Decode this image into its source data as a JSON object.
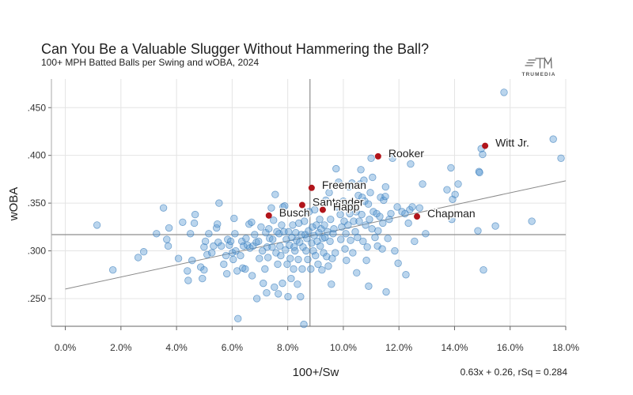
{
  "brand": {
    "logo_text": "TRUMEDIA",
    "logo_icon": "trumedia-logo-icon"
  },
  "colors": {
    "point": "#5a9bd3",
    "point_stroke": "#2e74b5",
    "highlight": "#b1151b",
    "grid": "#e4e4e4",
    "axis": "#666666",
    "y_axis": "#aaaaaa",
    "ref_line": "#8e8e8e",
    "regression": "#8a8a8a"
  },
  "chart_data": {
    "type": "scatter",
    "title": "Can You Be a Valuable Slugger Without Hammering the Ball?",
    "subtitle": "100+ MPH Batted Balls per Swing and wOBA, 2024",
    "xlabel": "100+/Sw",
    "ylabel": "wOBA",
    "xlim": [
      -0.005,
      0.18
    ],
    "ylim": [
      0.221,
      0.48
    ],
    "grid": true,
    "x_ticks": {
      "values": [
        0,
        0.02,
        0.04,
        0.06,
        0.08,
        0.1,
        0.12,
        0.14,
        0.16,
        0.18
      ],
      "labels": [
        "0.0%",
        "2.0%",
        "4.0%",
        "6.0%",
        "8.0%",
        "10.0%",
        "12.0%",
        "14.0%",
        "16.0%",
        "18.0%"
      ]
    },
    "y_ticks": {
      "values": [
        0.25,
        0.3,
        0.35,
        0.4,
        0.45
      ],
      "labels": [
        ".250",
        ".300",
        ".350",
        ".400",
        ".450"
      ]
    },
    "reference_lines": {
      "x_mean": 0.088,
      "y_mean": 0.317
    },
    "regression": {
      "slope": 0.63,
      "intercept": 0.26,
      "rsq": 0.284,
      "x_range": [
        0,
        0.18
      ],
      "label": "0.63x + 0.26, rSq = 0.284"
    },
    "points": [
      [
        0.0114,
        0.327
      ],
      [
        0.0171,
        0.28
      ],
      [
        0.0262,
        0.293
      ],
      [
        0.0282,
        0.299
      ],
      [
        0.0328,
        0.318
      ],
      [
        0.0353,
        0.345
      ],
      [
        0.037,
        0.305
      ],
      [
        0.0373,
        0.324
      ],
      [
        0.0365,
        0.312
      ],
      [
        0.0407,
        0.292
      ],
      [
        0.0422,
        0.33
      ],
      [
        0.0439,
        0.279
      ],
      [
        0.0442,
        0.269
      ],
      [
        0.045,
        0.318
      ],
      [
        0.0456,
        0.29
      ],
      [
        0.0467,
        0.338
      ],
      [
        0.0464,
        0.329
      ],
      [
        0.0487,
        0.283
      ],
      [
        0.0493,
        0.271
      ],
      [
        0.0499,
        0.304
      ],
      [
        0.0499,
        0.28
      ],
      [
        0.0504,
        0.31
      ],
      [
        0.051,
        0.296
      ],
      [
        0.0516,
        0.318
      ],
      [
        0.0527,
        0.298
      ],
      [
        0.0533,
        0.305
      ],
      [
        0.0544,
        0.324
      ],
      [
        0.0547,
        0.328
      ],
      [
        0.055,
        0.309
      ],
      [
        0.0553,
        0.35
      ],
      [
        0.0561,
        0.305
      ],
      [
        0.057,
        0.286
      ],
      [
        0.0578,
        0.295
      ],
      [
        0.0581,
        0.276
      ],
      [
        0.0584,
        0.312
      ],
      [
        0.059,
        0.306
      ],
      [
        0.0595,
        0.31
      ],
      [
        0.0601,
        0.298
      ],
      [
        0.0604,
        0.291
      ],
      [
        0.0607,
        0.334
      ],
      [
        0.061,
        0.318
      ],
      [
        0.0613,
        0.3
      ],
      [
        0.0618,
        0.279
      ],
      [
        0.0621,
        0.229
      ],
      [
        0.063,
        0.295
      ],
      [
        0.0635,
        0.31
      ],
      [
        0.0638,
        0.282
      ],
      [
        0.0641,
        0.305
      ],
      [
        0.0647,
        0.281
      ],
      [
        0.065,
        0.313
      ],
      [
        0.0655,
        0.306
      ],
      [
        0.0661,
        0.328
      ],
      [
        0.0664,
        0.303
      ],
      [
        0.067,
        0.33
      ],
      [
        0.0672,
        0.274
      ],
      [
        0.0675,
        0.305
      ],
      [
        0.0681,
        0.317
      ],
      [
        0.0687,
        0.309
      ],
      [
        0.0689,
        0.25
      ],
      [
        0.0695,
        0.31
      ],
      [
        0.0698,
        0.292
      ],
      [
        0.0704,
        0.325
      ],
      [
        0.0709,
        0.3
      ],
      [
        0.0712,
        0.266
      ],
      [
        0.0718,
        0.281
      ],
      [
        0.0721,
        0.319
      ],
      [
        0.0724,
        0.256
      ],
      [
        0.0726,
        0.304
      ],
      [
        0.0729,
        0.293
      ],
      [
        0.0732,
        0.323
      ],
      [
        0.0735,
        0.313
      ],
      [
        0.0741,
        0.345
      ],
      [
        0.0744,
        0.304
      ],
      [
        0.0746,
        0.312
      ],
      [
        0.0749,
        0.332
      ],
      [
        0.0752,
        0.262
      ],
      [
        0.0755,
        0.359
      ],
      [
        0.0758,
        0.298
      ],
      [
        0.0761,
        0.32
      ],
      [
        0.0764,
        0.286
      ],
      [
        0.0766,
        0.255
      ],
      [
        0.0769,
        0.318
      ],
      [
        0.0772,
        0.305
      ],
      [
        0.0775,
        0.295
      ],
      [
        0.0778,
        0.327
      ],
      [
        0.0781,
        0.266
      ],
      [
        0.0783,
        0.346
      ],
      [
        0.0786,
        0.32
      ],
      [
        0.0789,
        0.347
      ],
      [
        0.0792,
        0.301
      ],
      [
        0.0795,
        0.312
      ],
      [
        0.0798,
        0.286
      ],
      [
        0.0801,
        0.252
      ],
      [
        0.0803,
        0.32
      ],
      [
        0.0806,
        0.306
      ],
      [
        0.0809,
        0.292
      ],
      [
        0.0812,
        0.271
      ],
      [
        0.0815,
        0.314
      ],
      [
        0.0818,
        0.327
      ],
      [
        0.0821,
        0.281
      ],
      [
        0.0823,
        0.304
      ],
      [
        0.0826,
        0.3
      ],
      [
        0.0829,
        0.319
      ],
      [
        0.0832,
        0.311
      ],
      [
        0.0835,
        0.265
      ],
      [
        0.0838,
        0.291
      ],
      [
        0.084,
        0.329
      ],
      [
        0.0843,
        0.309
      ],
      [
        0.0846,
        0.252
      ],
      [
        0.0849,
        0.317
      ],
      [
        0.0852,
        0.281
      ],
      [
        0.0855,
        0.304
      ],
      [
        0.0858,
        0.223
      ],
      [
        0.086,
        0.331
      ],
      [
        0.0863,
        0.317
      ],
      [
        0.0866,
        0.3
      ],
      [
        0.0869,
        0.313
      ],
      [
        0.0872,
        0.291
      ],
      [
        0.0875,
        0.321
      ],
      [
        0.0877,
        0.341
      ],
      [
        0.0883,
        0.281
      ],
      [
        0.0886,
        0.308
      ],
      [
        0.0889,
        0.325
      ],
      [
        0.0892,
        0.3
      ],
      [
        0.0895,
        0.316
      ],
      [
        0.0897,
        0.343
      ],
      [
        0.09,
        0.295
      ],
      [
        0.0903,
        0.327
      ],
      [
        0.0906,
        0.31
      ],
      [
        0.0909,
        0.286
      ],
      [
        0.0912,
        0.319
      ],
      [
        0.0915,
        0.333
      ],
      [
        0.0917,
        0.305
      ],
      [
        0.092,
        0.323
      ],
      [
        0.0923,
        0.28
      ],
      [
        0.0926,
        0.313
      ],
      [
        0.0929,
        0.298
      ],
      [
        0.0932,
        0.327
      ],
      [
        0.0934,
        0.314
      ],
      [
        0.0937,
        0.353
      ],
      [
        0.094,
        0.294
      ],
      [
        0.0943,
        0.32
      ],
      [
        0.0946,
        0.284
      ],
      [
        0.0949,
        0.361
      ],
      [
        0.0952,
        0.31
      ],
      [
        0.0954,
        0.333
      ],
      [
        0.0957,
        0.265
      ],
      [
        0.096,
        0.292
      ],
      [
        0.0963,
        0.318
      ],
      [
        0.0966,
        0.323
      ],
      [
        0.0969,
        0.35
      ],
      [
        0.0971,
        0.298
      ],
      [
        0.0974,
        0.386
      ],
      [
        0.0977,
        0.346
      ],
      [
        0.0983,
        0.372
      ],
      [
        0.0989,
        0.338
      ],
      [
        0.0991,
        0.312
      ],
      [
        0.0994,
        0.325
      ],
      [
        0.1,
        0.352
      ],
      [
        0.1003,
        0.331
      ],
      [
        0.1006,
        0.302
      ],
      [
        0.1009,
        0.318
      ],
      [
        0.1011,
        0.29
      ],
      [
        0.1017,
        0.327
      ],
      [
        0.102,
        0.367
      ],
      [
        0.1023,
        0.339
      ],
      [
        0.1026,
        0.311
      ],
      [
        0.1028,
        0.346
      ],
      [
        0.1031,
        0.371
      ],
      [
        0.1034,
        0.298
      ],
      [
        0.1037,
        0.331
      ],
      [
        0.104,
        0.349
      ],
      [
        0.1043,
        0.32
      ],
      [
        0.1046,
        0.341
      ],
      [
        0.1048,
        0.277
      ],
      [
        0.1051,
        0.314
      ],
      [
        0.1054,
        0.358
      ],
      [
        0.1057,
        0.331
      ],
      [
        0.106,
        0.37
      ],
      [
        0.1063,
        0.385
      ],
      [
        0.1066,
        0.338
      ],
      [
        0.1068,
        0.356
      ],
      [
        0.1071,
        0.31
      ],
      [
        0.1074,
        0.374
      ],
      [
        0.1077,
        0.352
      ],
      [
        0.108,
        0.327
      ],
      [
        0.1083,
        0.29
      ],
      [
        0.1086,
        0.304
      ],
      [
        0.109,
        0.349
      ],
      [
        0.1091,
        0.263
      ],
      [
        0.1094,
        0.333
      ],
      [
        0.1097,
        0.361
      ],
      [
        0.11,
        0.397
      ],
      [
        0.1103,
        0.323
      ],
      [
        0.1105,
        0.377
      ],
      [
        0.1108,
        0.341
      ],
      [
        0.1114,
        0.314
      ],
      [
        0.112,
        0.339
      ],
      [
        0.1123,
        0.305
      ],
      [
        0.1125,
        0.321
      ],
      [
        0.1131,
        0.336
      ],
      [
        0.1134,
        0.356
      ],
      [
        0.114,
        0.302
      ],
      [
        0.1142,
        0.329
      ],
      [
        0.1145,
        0.353
      ],
      [
        0.1151,
        0.357
      ],
      [
        0.1152,
        0.367
      ],
      [
        0.1154,
        0.257
      ],
      [
        0.116,
        0.313
      ],
      [
        0.1165,
        0.333
      ],
      [
        0.1171,
        0.339
      ],
      [
        0.1177,
        0.397
      ],
      [
        0.1185,
        0.3
      ],
      [
        0.1194,
        0.346
      ],
      [
        0.1197,
        0.287
      ],
      [
        0.1211,
        0.341
      ],
      [
        0.1222,
        0.339
      ],
      [
        0.1225,
        0.275
      ],
      [
        0.1234,
        0.329
      ],
      [
        0.1239,
        0.343
      ],
      [
        0.1242,
        0.391
      ],
      [
        0.1248,
        0.346
      ],
      [
        0.1256,
        0.31
      ],
      [
        0.1274,
        0.345
      ],
      [
        0.1285,
        0.37
      ],
      [
        0.1296,
        0.318
      ],
      [
        0.1373,
        0.364
      ],
      [
        0.1387,
        0.387
      ],
      [
        0.139,
        0.333
      ],
      [
        0.1393,
        0.354
      ],
      [
        0.1402,
        0.359
      ],
      [
        0.1413,
        0.37
      ],
      [
        0.1484,
        0.321
      ],
      [
        0.1488,
        0.383
      ],
      [
        0.149,
        0.382
      ],
      [
        0.1496,
        0.407
      ],
      [
        0.1501,
        0.401
      ],
      [
        0.1504,
        0.28
      ],
      [
        0.1547,
        0.326
      ],
      [
        0.1578,
        0.466
      ],
      [
        0.1678,
        0.331
      ],
      [
        0.1755,
        0.417
      ],
      [
        0.1783,
        0.397
      ]
    ],
    "highlighted": [
      {
        "name": "Witt Jr.",
        "x": 0.151,
        "y": 0.41
      },
      {
        "name": "Rooker",
        "x": 0.1125,
        "y": 0.399
      },
      {
        "name": "Freeman",
        "x": 0.0886,
        "y": 0.366
      },
      {
        "name": "Santander",
        "x": 0.0852,
        "y": 0.348
      },
      {
        "name": "Happ",
        "x": 0.0926,
        "y": 0.343
      },
      {
        "name": "Busch",
        "x": 0.0732,
        "y": 0.337
      },
      {
        "name": "Chapman",
        "x": 0.1265,
        "y": 0.336
      }
    ]
  }
}
